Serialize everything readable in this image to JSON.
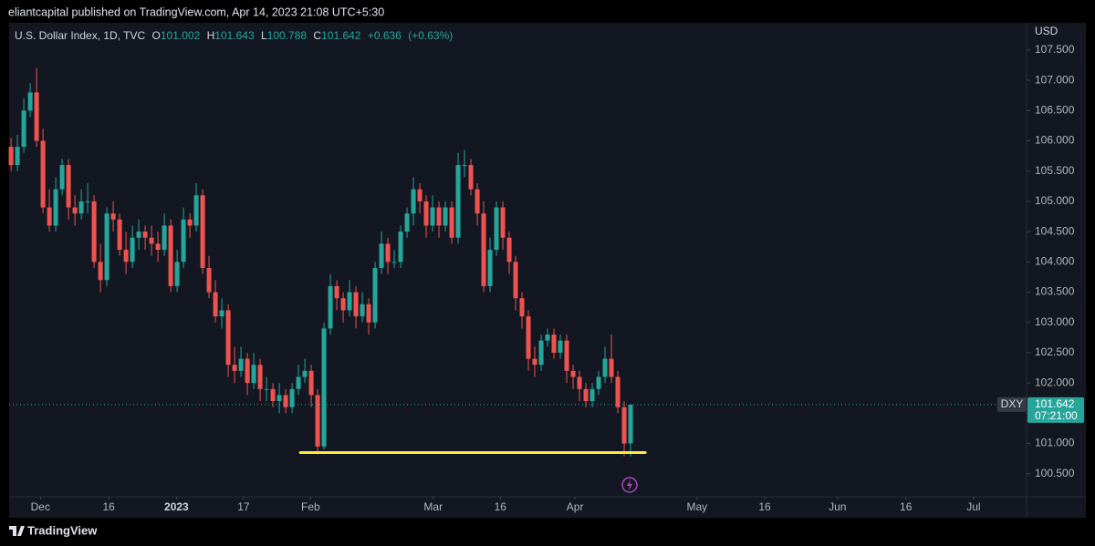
{
  "header": {
    "text": "eliantcapital published on TradingView.com, Apr 14, 2023 21:08 UTC+5:30"
  },
  "footer": {
    "brand": "TradingView"
  },
  "chart_data": {
    "type": "candlestick",
    "title": "U.S. Dollar Index, 1D, TVC",
    "legend": {
      "o": "O",
      "h": "H",
      "l": "L",
      "c": "C",
      "change": "+0.636",
      "change_pct": "(+0.63%)"
    },
    "y_axis_label": "USD",
    "symbol": "DXY",
    "countdown": "07:21:00",
    "up_color": "#26a69a",
    "down_color": "#ef5350",
    "grid": false,
    "open": [
      105.9,
      105.6,
      105.9,
      106.5,
      106.8,
      106.0,
      104.9,
      104.6,
      105.2,
      105.6,
      104.9,
      104.8,
      105.0,
      105.0,
      104.0,
      103.7,
      104.8,
      104.7,
      104.2,
      104.0,
      104.4,
      104.5,
      104.4,
      104.3,
      104.2,
      104.6,
      103.6,
      104.0,
      104.7,
      104.6,
      105.1,
      103.9,
      103.5,
      103.1,
      103.2,
      102.3,
      102.2,
      102.4,
      102.0,
      102.3,
      101.9,
      101.9,
      101.7,
      101.8,
      101.6,
      101.9,
      102.1,
      102.2,
      101.8,
      100.95,
      102.9,
      103.6,
      103.4,
      103.2,
      103.5,
      103.1,
      103.3,
      103.0,
      103.9,
      104.3,
      104.0,
      104.0,
      104.5,
      104.8,
      105.2,
      105.0,
      104.6,
      104.9,
      104.6,
      104.9,
      104.4,
      105.6,
      105.6,
      105.2,
      104.8,
      103.6,
      104.2,
      104.9,
      104.4,
      104.0,
      103.4,
      103.1,
      102.4,
      102.3,
      102.7,
      102.8,
      102.5,
      102.7,
      102.2,
      102.1,
      101.9,
      101.7,
      101.9,
      102.1,
      102.4,
      102.1,
      101.6,
      101.002
    ],
    "high": [
      106.05,
      106.1,
      106.7,
      106.95,
      107.2,
      106.2,
      105.2,
      105.4,
      105.7,
      105.7,
      105.1,
      105.2,
      105.3,
      105.1,
      104.3,
      104.9,
      105.0,
      104.8,
      104.5,
      104.6,
      104.7,
      104.6,
      104.6,
      104.5,
      104.8,
      104.7,
      104.2,
      104.9,
      104.8,
      105.3,
      105.2,
      104.1,
      103.7,
      103.4,
      103.3,
      102.6,
      102.6,
      102.5,
      102.5,
      102.4,
      102.1,
      102.0,
      102.0,
      101.9,
      102.0,
      102.3,
      102.4,
      102.3,
      101.9,
      103.0,
      103.8,
      103.7,
      103.5,
      103.7,
      103.6,
      103.5,
      103.4,
      104.0,
      104.5,
      104.4,
      104.2,
      104.6,
      104.9,
      105.4,
      105.3,
      105.1,
      105.1,
      105.0,
      105.0,
      105.0,
      105.8,
      105.85,
      105.7,
      105.3,
      105.0,
      104.4,
      105.0,
      105.0,
      104.5,
      104.1,
      103.5,
      103.2,
      102.6,
      102.8,
      102.9,
      102.9,
      102.8,
      102.8,
      102.3,
      102.2,
      102.0,
      102.0,
      102.2,
      102.6,
      102.8,
      102.2,
      101.7,
      101.643
    ],
    "low": [
      105.5,
      105.5,
      105.8,
      106.4,
      105.9,
      104.8,
      104.5,
      104.5,
      105.1,
      104.7,
      104.6,
      104.7,
      104.8,
      103.9,
      103.5,
      103.6,
      104.5,
      104.1,
      103.8,
      103.9,
      104.2,
      104.2,
      104.1,
      104.0,
      104.1,
      103.5,
      103.5,
      103.9,
      104.4,
      104.5,
      103.8,
      103.4,
      103.0,
      102.9,
      102.1,
      102.0,
      102.1,
      101.8,
      101.9,
      101.7,
      101.7,
      101.6,
      101.5,
      101.5,
      101.5,
      101.8,
      102.0,
      101.6,
      100.82,
      100.9,
      102.8,
      103.2,
      103.0,
      103.1,
      102.9,
      103.0,
      102.8,
      102.9,
      103.8,
      103.8,
      103.9,
      103.9,
      104.4,
      104.6,
      104.8,
      104.4,
      104.5,
      104.4,
      104.5,
      104.3,
      104.3,
      105.4,
      105.1,
      104.6,
      103.5,
      103.5,
      104.1,
      104.2,
      103.8,
      103.2,
      102.9,
      102.2,
      102.1,
      102.2,
      102.6,
      102.4,
      102.4,
      102.0,
      101.9,
      101.7,
      101.6,
      101.6,
      101.8,
      102.0,
      102.0,
      101.5,
      100.79,
      100.788
    ],
    "close": [
      105.6,
      105.9,
      106.5,
      106.8,
      106.0,
      104.9,
      104.6,
      105.2,
      105.6,
      104.9,
      104.8,
      105.0,
      105.0,
      104.0,
      103.7,
      104.8,
      104.7,
      104.2,
      104.0,
      104.4,
      104.5,
      104.4,
      104.3,
      104.2,
      104.6,
      103.6,
      104.0,
      104.7,
      104.6,
      105.1,
      103.9,
      103.5,
      103.1,
      103.2,
      102.3,
      102.2,
      102.4,
      102.0,
      102.3,
      101.9,
      101.9,
      101.7,
      101.8,
      101.6,
      101.9,
      102.1,
      102.2,
      101.8,
      100.95,
      102.9,
      103.6,
      103.4,
      103.2,
      103.5,
      103.1,
      103.3,
      103.0,
      103.9,
      104.3,
      104.0,
      104.0,
      104.5,
      104.8,
      105.2,
      105.0,
      104.6,
      104.9,
      104.6,
      104.9,
      104.4,
      105.6,
      105.6,
      105.2,
      104.8,
      103.6,
      104.2,
      104.9,
      104.4,
      104.0,
      103.4,
      103.1,
      102.4,
      102.3,
      102.7,
      102.8,
      102.5,
      102.7,
      102.2,
      102.1,
      101.9,
      101.7,
      101.9,
      102.1,
      102.4,
      102.1,
      101.6,
      101.0,
      101.642
    ],
    "support_line": {
      "value": 100.85,
      "from": 45.3,
      "to": 99.3,
      "color": "#ffeb3b"
    },
    "xlim": [
      -0.3,
      159
    ],
    "ylim": [
      100.12,
      107.95
    ],
    "xticks": [
      {
        "value": 4.6,
        "label": "Dec"
      },
      {
        "value": 15.3,
        "label": "16"
      },
      {
        "value": 25.9,
        "label": "2023"
      },
      {
        "value": 36.4,
        "label": "17"
      },
      {
        "value": 46.9,
        "label": "Feb"
      },
      {
        "value": 66.1,
        "label": "Mar"
      },
      {
        "value": 76.6,
        "label": "16"
      },
      {
        "value": 88.3,
        "label": "Apr"
      },
      {
        "value": 107.4,
        "label": "May"
      },
      {
        "value": 118.0,
        "label": "16"
      },
      {
        "value": 129.4,
        "label": "Jun"
      },
      {
        "value": 140.1,
        "label": "16"
      },
      {
        "value": 150.7,
        "label": "Jul"
      }
    ],
    "yticks": [
      {
        "value": 100.5,
        "label": "100.500"
      },
      {
        "value": 101,
        "label": "101.000"
      },
      {
        "value": 101.5,
        "label": "101.500"
      },
      {
        "value": 102,
        "label": "102.000"
      },
      {
        "value": 102.5,
        "label": "102.500"
      },
      {
        "value": 103,
        "label": "103.000"
      },
      {
        "value": 103.5,
        "label": "103.500"
      },
      {
        "value": 104,
        "label": "104.000"
      },
      {
        "value": 104.5,
        "label": "104.500"
      },
      {
        "value": 105,
        "label": "105.000"
      },
      {
        "value": 105.5,
        "label": "105.500"
      },
      {
        "value": 106,
        "label": "106.000"
      },
      {
        "value": 106.5,
        "label": "106.500"
      },
      {
        "value": 107,
        "label": "107.000"
      },
      {
        "value": 107.5,
        "label": "107.500"
      }
    ]
  }
}
